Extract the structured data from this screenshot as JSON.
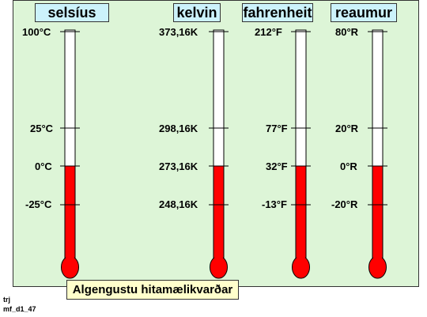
{
  "scales": [
    {
      "name": "selsíus",
      "labels": [
        "100°C",
        "25°C",
        "0°C",
        "-25°C"
      ]
    },
    {
      "name": "kelvin",
      "labels": [
        "373,16K",
        "298,16K",
        "273,16K",
        "248,16K"
      ]
    },
    {
      "name": "fahrenheit",
      "labels": [
        "212°F",
        "77°F",
        "32°F",
        "-13°F"
      ]
    },
    {
      "name": "reaumur",
      "labels": [
        "80°R",
        "20°R",
        "0°R",
        "-20°R"
      ]
    }
  ],
  "caption": "Algengustu hitamælikvarðar",
  "footer": {
    "line1": "trj",
    "line2": "mf_d1_47"
  },
  "colors": {
    "mercury": "#ff0000",
    "panel": "#ddf5d7",
    "title_bg": "#ccf2fb",
    "caption_bg": "#ffffcc"
  }
}
